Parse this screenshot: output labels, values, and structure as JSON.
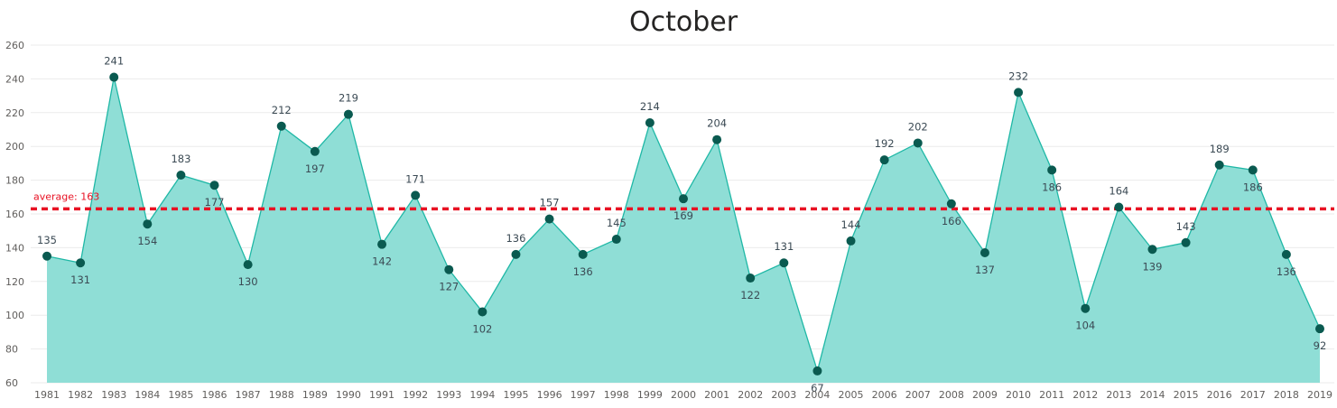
{
  "chart_data": {
    "type": "area",
    "title": "October",
    "x": [
      "1981",
      "1982",
      "1983",
      "1984",
      "1985",
      "1986",
      "1987",
      "1988",
      "1989",
      "1990",
      "1991",
      "1992",
      "1993",
      "1994",
      "1995",
      "1996",
      "1997",
      "1998",
      "1999",
      "2000",
      "2001",
      "2002",
      "2003",
      "2004",
      "2005",
      "2006",
      "2007",
      "2008",
      "2009",
      "2010",
      "2011",
      "2012",
      "2013",
      "2014",
      "2015",
      "2016",
      "2017",
      "2018",
      "2019"
    ],
    "values": [
      135,
      131,
      241,
      154,
      183,
      177,
      130,
      212,
      197,
      219,
      142,
      171,
      127,
      102,
      136,
      157,
      136,
      145,
      214,
      169,
      204,
      122,
      131,
      67,
      144,
      192,
      202,
      166,
      137,
      232,
      186,
      104,
      164,
      139,
      143,
      189,
      186,
      136,
      92
    ],
    "ylim": [
      60,
      260
    ],
    "yticks": [
      60,
      80,
      100,
      120,
      140,
      160,
      180,
      200,
      220,
      240,
      260
    ],
    "average_line": {
      "value": 163,
      "label": "average: 163"
    },
    "grid": true,
    "colors": {
      "area": "#8fded6",
      "line": "#1fb8a6",
      "marker": "#0a5a50",
      "average": "#e81123"
    }
  }
}
